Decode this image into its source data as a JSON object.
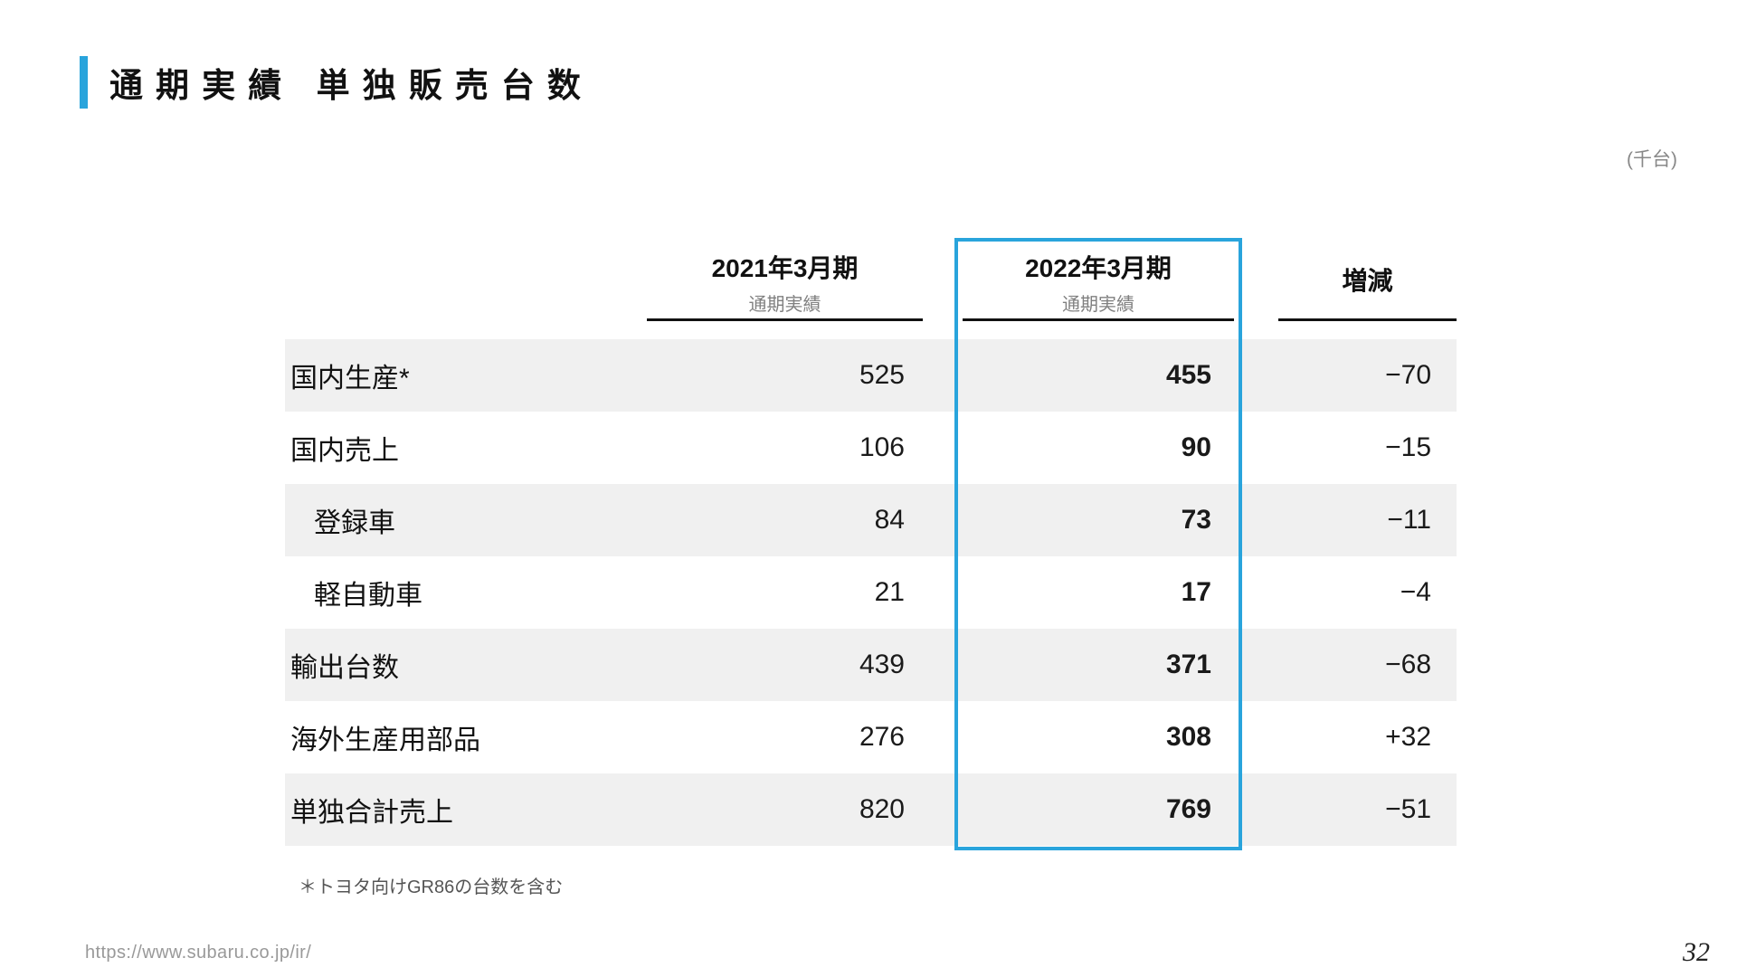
{
  "page": {
    "title": "通期実績 単独販売台数",
    "unit_note": "(千台)",
    "footnote": "＊トヨタ向けGR86の台数を含む",
    "footer_url": "https://www.subaru.co.jp/ir/",
    "page_number": "32"
  },
  "colors": {
    "accent_blue": "#29a4dc",
    "row_gray": "#f0f0f0",
    "header_underline": "#111111",
    "subtitle_gray": "#808080"
  },
  "table": {
    "columns": [
      {
        "label": "2021年3月期",
        "sublabel": "通期実績",
        "highlighted": false
      },
      {
        "label": "2022年3月期",
        "sublabel": "通期実績",
        "highlighted": true
      },
      {
        "label": "増減",
        "sublabel": "",
        "highlighted": false
      }
    ],
    "rows": [
      {
        "label": "国内生産*",
        "indent": false,
        "fy2021": "525",
        "fy2022": "455",
        "change": "−70"
      },
      {
        "label": "国内売上",
        "indent": false,
        "fy2021": "106",
        "fy2022": "90",
        "change": "−15"
      },
      {
        "label": "登録車",
        "indent": true,
        "fy2021": "84",
        "fy2022": "73",
        "change": "−11"
      },
      {
        "label": "軽自動車",
        "indent": true,
        "fy2021": "21",
        "fy2022": "17",
        "change": "−4"
      },
      {
        "label": "輸出台数",
        "indent": false,
        "fy2021": "439",
        "fy2022": "371",
        "change": "−68"
      },
      {
        "label": "海外生産用部品",
        "indent": false,
        "fy2021": "276",
        "fy2022": "308",
        "change": "+32"
      },
      {
        "label": "単独合計売上",
        "indent": false,
        "fy2021": "820",
        "fy2022": "769",
        "change": "−51"
      }
    ]
  }
}
